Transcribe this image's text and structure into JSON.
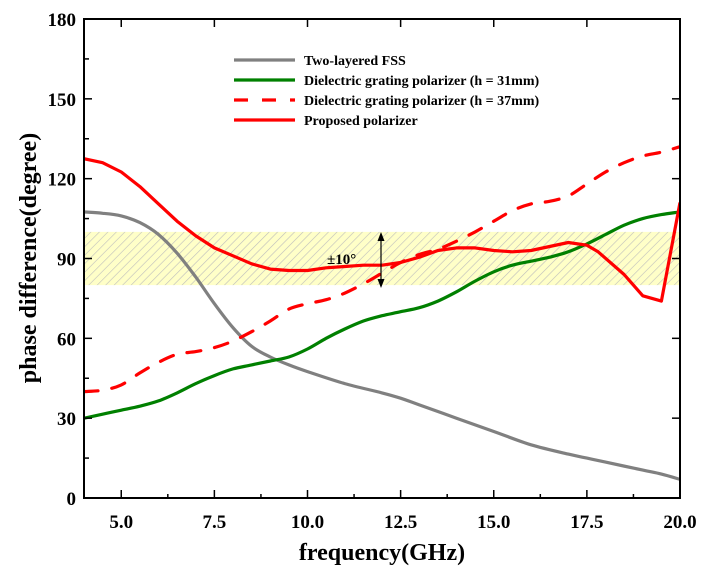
{
  "chart_data": {
    "type": "line",
    "title": "",
    "xlabel": "frequency(GHz)",
    "ylabel": "phase difference(degree)",
    "xlim": [
      4,
      20
    ],
    "ylim": [
      0,
      180
    ],
    "xticks": [
      5.0,
      7.5,
      10.0,
      12.5,
      15.0,
      17.5,
      20.0
    ],
    "xtick_labels": [
      "5.0",
      "7.5",
      "10.0",
      "12.5",
      "15.0",
      "17.5",
      "20.0"
    ],
    "yticks": [
      0,
      30,
      60,
      90,
      120,
      150,
      180
    ],
    "ytick_labels": [
      "0",
      "30",
      "60",
      "90",
      "120",
      "150",
      "180"
    ],
    "grid": false,
    "legend_position": "top-center",
    "band": {
      "from": 80,
      "to": 100,
      "color": "#ffffc0",
      "hatch_color": "#b8b8b8",
      "label": "±10°"
    },
    "series": [
      {
        "name": "Two-layered FSS",
        "color": "#808080",
        "dash": "solid",
        "x": [
          4,
          4.5,
          5,
          5.5,
          6,
          6.5,
          7,
          7.5,
          8,
          8.5,
          9,
          9.5,
          10,
          11,
          12,
          12.5,
          13,
          14,
          15,
          16,
          17,
          17.5,
          18,
          19,
          19.5,
          20
        ],
        "y": [
          107.5,
          107,
          106,
          103.5,
          99,
          92,
          83,
          73,
          64,
          57,
          53,
          50,
          47.5,
          43,
          39.5,
          37.5,
          35,
          30,
          25,
          20,
          16.5,
          15,
          13.5,
          10.5,
          9,
          7
        ]
      },
      {
        "name": "Dielectric grating polarizer (h = 31mm)",
        "color": "#008000",
        "dash": "solid",
        "x": [
          4,
          4.5,
          5,
          5.5,
          6,
          6.5,
          7,
          7.5,
          8,
          8.5,
          9,
          9.5,
          10,
          10.5,
          11,
          11.5,
          12,
          12.5,
          13,
          13.5,
          14,
          14.5,
          15,
          15.5,
          16,
          16.5,
          17,
          17.5,
          18,
          18.5,
          19,
          19.5,
          20
        ],
        "y": [
          30,
          31.5,
          33,
          34.5,
          36.5,
          39.5,
          43,
          46,
          48.5,
          50,
          51.5,
          53,
          56,
          60,
          63.5,
          66.5,
          68.5,
          70,
          71.5,
          74,
          77.5,
          81.5,
          85,
          87.5,
          89,
          90.5,
          92.5,
          95.5,
          99,
          102.5,
          105,
          106.5,
          107.5
        ]
      },
      {
        "name": "Dielectric grating polarizer (h = 37mm)",
        "color": "#ff0000",
        "dash": "dashed",
        "x": [
          4,
          4.5,
          5,
          5.5,
          6,
          6.5,
          7,
          7.5,
          8,
          8.5,
          9,
          9.5,
          10,
          10.5,
          11,
          11.5,
          12,
          12.5,
          13,
          13.5,
          14,
          14.5,
          15,
          15.5,
          16,
          16.5,
          17,
          17.5,
          18,
          18.5,
          19,
          19.5,
          20
        ],
        "y": [
          40,
          40.5,
          42.5,
          47,
          51,
          54,
          55,
          56.5,
          59,
          62.5,
          66.5,
          71,
          73,
          74.5,
          77,
          80.5,
          84.5,
          88.5,
          91.5,
          93.5,
          96.5,
          100,
          104,
          108,
          110.5,
          111.5,
          113.5,
          118,
          122.5,
          126,
          128.5,
          130,
          132
        ]
      },
      {
        "name": "Proposed polarizer",
        "color": "#ff0000",
        "dash": "solid",
        "x": [
          4,
          4.5,
          5,
          5.5,
          6,
          6.5,
          7,
          7.5,
          8,
          8.5,
          9,
          9.5,
          10,
          10.5,
          11,
          11.5,
          12,
          12.5,
          13,
          13.5,
          14,
          14.5,
          15,
          15.5,
          16,
          16.5,
          17,
          17.5,
          17.8,
          18.5,
          19,
          19.5,
          20
        ],
        "y": [
          127.5,
          126,
          122.5,
          117,
          110.5,
          104,
          98.5,
          94,
          91,
          88,
          86,
          85.5,
          85.5,
          86.5,
          87,
          87.5,
          87.5,
          88.5,
          90.5,
          93,
          94,
          94,
          93,
          92.5,
          93,
          94.5,
          96,
          95,
          92.5,
          84,
          76,
          74,
          111
        ]
      }
    ]
  }
}
